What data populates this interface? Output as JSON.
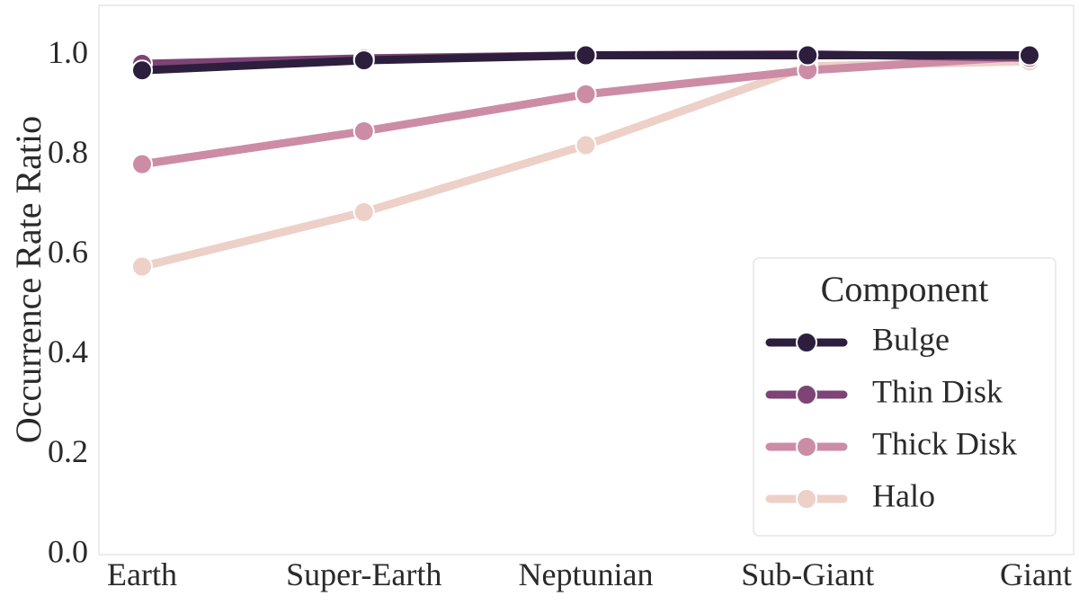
{
  "chart_data": {
    "type": "line",
    "title": "",
    "xlabel": "",
    "ylabel": "Occurrence Rate Ratio",
    "categories": [
      "Earth",
      "Super-Earth",
      "Neptunian",
      "Sub-Giant",
      "Giant"
    ],
    "ylim": [
      0.0,
      1.1
    ],
    "yticks": [
      "0.0",
      "0.2",
      "0.4",
      "0.6",
      "0.8",
      "1.0"
    ],
    "grid": false,
    "legend": {
      "title": "Component",
      "position": "bottom-right"
    },
    "series": [
      {
        "name": "Bulge",
        "color": "#2d1e3e",
        "values": [
          0.97,
          0.99,
          1.0,
          1.0,
          1.0
        ]
      },
      {
        "name": "Thin Disk",
        "color": "#7e4475",
        "values": [
          0.983,
          0.994,
          1.0,
          1.002,
          0.995
        ]
      },
      {
        "name": "Thick Disk",
        "color": "#cc8ca5",
        "values": [
          0.782,
          0.848,
          0.922,
          0.97,
          0.998
        ]
      },
      {
        "name": "Halo",
        "color": "#edd0c8",
        "values": [
          0.577,
          0.686,
          0.82,
          0.978,
          0.988
        ]
      }
    ]
  }
}
